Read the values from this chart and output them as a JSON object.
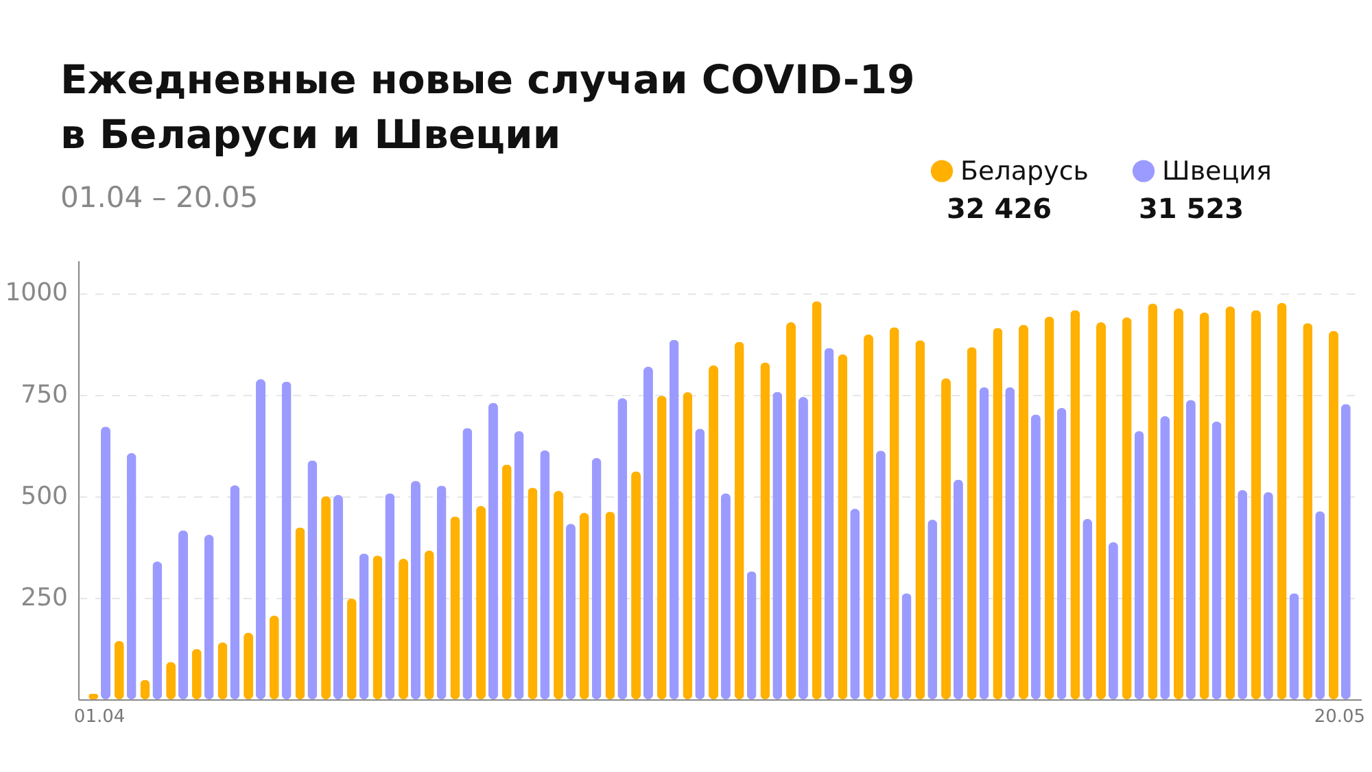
{
  "chart_data": {
    "type": "bar",
    "title": "Ежедневные новые случаи COVID-19\nв Беларуси и Швеции",
    "subtitle": "01.04 – 20.05",
    "categories": [
      "01.04",
      null,
      null,
      null,
      null,
      null,
      null,
      null,
      null,
      null,
      null,
      null,
      null,
      null,
      null,
      null,
      null,
      null,
      null,
      null,
      null,
      null,
      null,
      null,
      null,
      null,
      null,
      null,
      null,
      null,
      null,
      null,
      null,
      null,
      null,
      null,
      null,
      null,
      null,
      null,
      null,
      null,
      null,
      null,
      null,
      null,
      null,
      null,
      "20.05"
    ],
    "series": [
      {
        "name": "Беларусь",
        "color": "#ffb000",
        "values": [
          14,
          144,
          48,
          92,
          124,
          140,
          164,
          206,
          423,
          500,
          248,
          354,
          346,
          366,
          450,
          476,
          578,
          521,
          513,
          459,
          462,
          561,
          747,
          756,
          822,
          880,
          829,
          928,
          980,
          849,
          898,
          916,
          884,
          790,
          867,
          914,
          922,
          942,
          958,
          928,
          940,
          974,
          962,
          952,
          967,
          958,
          976,
          926,
          907
        ]
      },
      {
        "name": "Швеция",
        "color": "#9b9bff",
        "values": [
          671,
          606,
          339,
          416,
          405,
          527,
          788,
          782,
          588,
          503,
          359,
          507,
          538,
          526,
          668,
          730,
          660,
          613,
          432,
          594,
          741,
          819,
          885,
          666,
          507,
          315,
          757,
          744,
          865,
          469,
          612,
          261,
          442,
          541,
          768,
          768,
          701,
          717,
          444,
          387,
          660,
          697,
          737,
          684,
          515,
          510,
          261,
          463,
          727
        ]
      }
    ],
    "ylim": [
      0,
      1080
    ],
    "yticks": [
      250,
      500,
      750,
      1000
    ],
    "grid": "y",
    "legend": "top right",
    "annotations": [
      "32 426",
      "31 523"
    ]
  }
}
